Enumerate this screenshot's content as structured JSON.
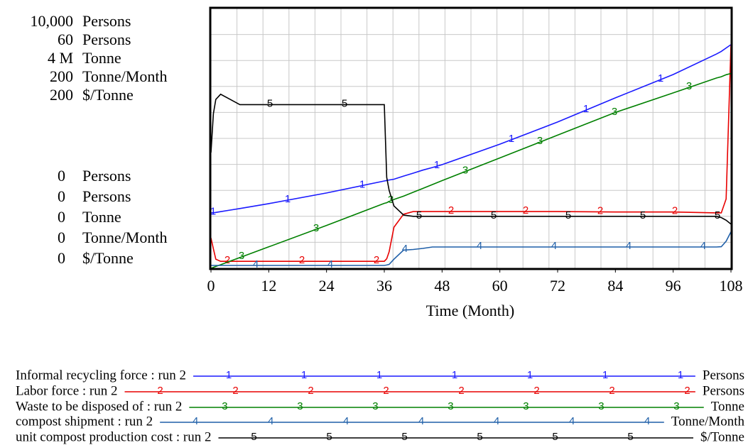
{
  "chart_data": {
    "type": "line",
    "x": [
      0,
      0.5,
      1,
      2,
      4,
      6,
      12,
      24,
      36,
      36.5,
      37,
      38,
      40,
      42,
      44,
      46,
      48,
      60,
      72,
      84,
      96,
      105,
      106,
      107,
      108
    ],
    "xlim": [
      0,
      108
    ],
    "xticks": [
      0,
      12,
      24,
      36,
      48,
      60,
      72,
      84,
      96,
      108
    ],
    "xlabel": "Time (Month)",
    "grid": true,
    "x_grid_divisions": 20,
    "y_grid_divisions": 10,
    "series": [
      {
        "name": "Informal recycling force : run 2",
        "label": "1",
        "unit": "Persons",
        "color": "#1a1aff",
        "ylim": [
          0,
          10000
        ],
        "yticks": [
          0,
          {
            "value": 10000,
            "label": "10,000"
          }
        ],
        "values": [
          2130,
          2140,
          2150,
          2180,
          2240,
          2300,
          2490,
          2900,
          3360,
          3380,
          3400,
          3430,
          3550,
          3660,
          3780,
          3880,
          3990,
          4780,
          5630,
          6560,
          7460,
          8250,
          8350,
          8480,
          8610
        ]
      },
      {
        "name": "Labor force : run 2",
        "label": "2",
        "unit": "Persons",
        "color": "#e80000",
        "ylim": [
          0,
          60
        ],
        "yticks": [
          0,
          60
        ],
        "values": [
          7,
          4.5,
          2.1,
          1.6,
          1.6,
          1.6,
          1.6,
          1.6,
          1.6,
          2.2,
          3.8,
          9.5,
          12.5,
          13.1,
          13.1,
          13.1,
          13.1,
          13.1,
          13.1,
          13,
          13,
          12.8,
          12.8,
          16,
          51.6
        ]
      },
      {
        "name": "Waste to be disposed of : run 2",
        "label": "3",
        "unit": "Tonne",
        "color": "#008000",
        "ylim": [
          0,
          4000000
        ],
        "yticks": [
          0,
          {
            "value": 4000000,
            "label": "4 M"
          }
        ],
        "values": [
          0,
          14000,
          28000,
          55000,
          110000,
          165000,
          330000,
          660000,
          1000000,
          1010000,
          1030000,
          1060000,
          1110000,
          1170000,
          1230000,
          1290000,
          1350000,
          1700000,
          2050000,
          2400000,
          2700000,
          2930000,
          2950000,
          2980000,
          3000000
        ]
      },
      {
        "name": "compost shipment : run 2",
        "label": "4",
        "unit": "Tonne/Month",
        "color": "#1f5fa8",
        "ylim": [
          0,
          200
        ],
        "yticks": [
          0,
          200
        ],
        "values": [
          2.2,
          2.2,
          2.2,
          2.2,
          2.2,
          2.2,
          2.2,
          2.2,
          2.2,
          2.5,
          3,
          7,
          14,
          14.5,
          15.3,
          16.4,
          16.4,
          16.4,
          16.4,
          16.4,
          16.4,
          16.4,
          16.6,
          20.8,
          28
        ]
      },
      {
        "name": "unit compost production cost : run 2",
        "label": "5",
        "unit": "$/Tonne",
        "color": "#000000",
        "ylim": [
          0,
          200
        ],
        "yticks": [
          0,
          200
        ],
        "values": [
          89,
          119,
          130,
          134,
          130,
          126,
          126,
          126,
          126,
          70,
          60,
          48,
          41,
          40,
          40,
          40,
          40,
          40,
          40,
          40,
          40,
          40,
          39,
          37,
          34
        ]
      }
    ]
  }
}
